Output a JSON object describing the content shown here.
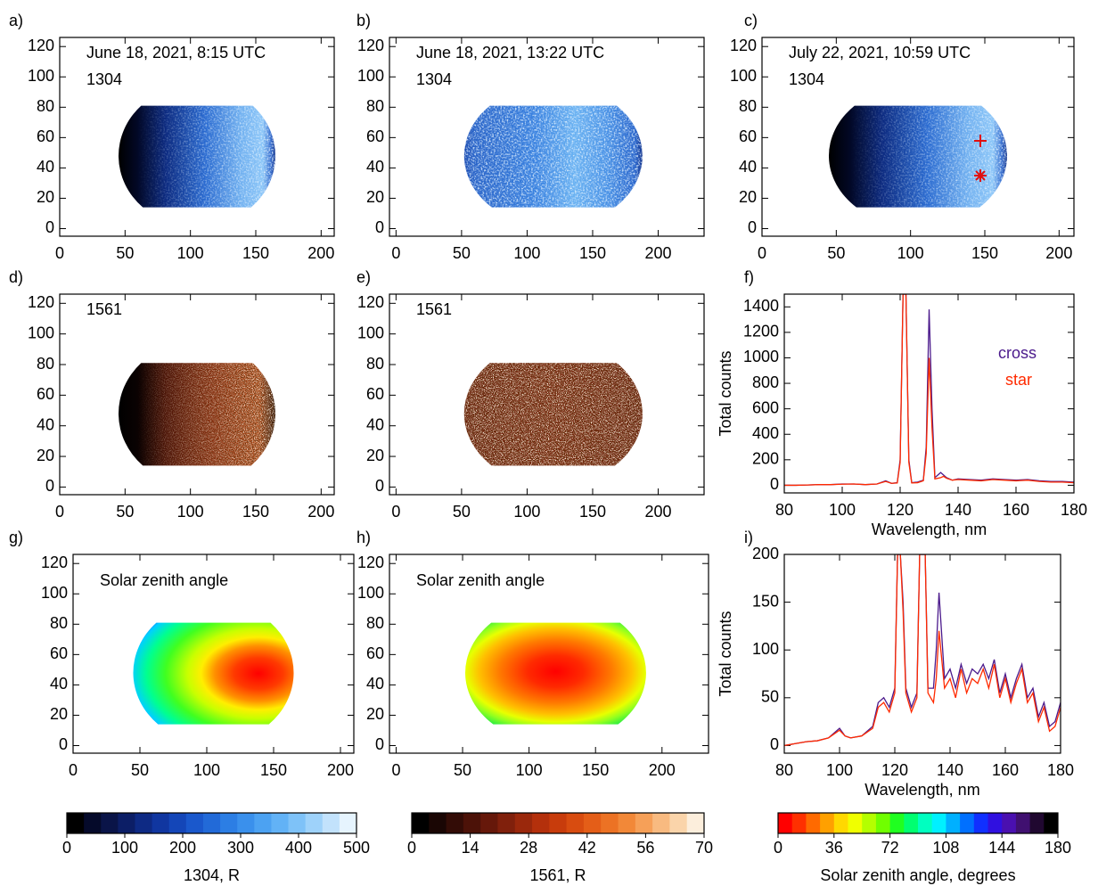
{
  "chart_data": [
    {
      "type": "image",
      "label": "a)",
      "annotations": [
        "June 18, 2021, 8:15 UTC",
        "1304"
      ],
      "colormap": "blue-dawn",
      "xlim": [
        0,
        210
      ],
      "xticks": [
        0,
        50,
        100,
        150,
        200
      ],
      "ylim": [
        -5,
        126
      ],
      "yticks": [
        0,
        20,
        40,
        60,
        80,
        100,
        120
      ]
    },
    {
      "type": "image",
      "label": "b)",
      "annotations": [
        "June 18, 2021, 13:22 UTC",
        "1304"
      ],
      "colormap": "blue-day",
      "xlim": [
        -5,
        235
      ],
      "xticks": [
        0,
        50,
        100,
        150,
        200
      ],
      "ylim": [
        -5,
        126
      ],
      "yticks": [
        0,
        20,
        40,
        60,
        80,
        100,
        120
      ]
    },
    {
      "type": "image",
      "label": "c)",
      "annotations": [
        "July 22, 2021, 10:59 UTC",
        "1304"
      ],
      "colormap": "blue-dawn",
      "xlim": [
        0,
        210
      ],
      "xticks": [
        0,
        50,
        100,
        150,
        200
      ],
      "ylim": [
        -5,
        126
      ],
      "yticks": [
        0,
        20,
        40,
        60,
        80,
        100,
        120
      ]
    },
    {
      "type": "image",
      "label": "d)",
      "annotations": [
        "1561"
      ],
      "colormap": "red-dawn",
      "xlim": [
        0,
        210
      ],
      "xticks": [
        0,
        50,
        100,
        150,
        200
      ],
      "ylim": [
        -5,
        126
      ],
      "yticks": [
        0,
        20,
        40,
        60,
        80,
        100,
        120
      ]
    },
    {
      "type": "image",
      "label": "e)",
      "annotations": [
        "1561"
      ],
      "colormap": "red-day",
      "xlim": [
        -5,
        235
      ],
      "xticks": [
        0,
        50,
        100,
        150,
        200
      ],
      "ylim": [
        -5,
        126
      ],
      "yticks": [
        0,
        20,
        40,
        60,
        80,
        100,
        120
      ]
    },
    {
      "type": "line",
      "label": "f)",
      "xlabel": "Wavelength, nm",
      "ylabel": "Total counts",
      "x": [
        80,
        84,
        88,
        92,
        96,
        100,
        104,
        108,
        112,
        115,
        117,
        119,
        120,
        121,
        122,
        123,
        124,
        126,
        128,
        129,
        130,
        131,
        132,
        134,
        135,
        136,
        138,
        140,
        144,
        148,
        152,
        156,
        160,
        164,
        168,
        172,
        176,
        180
      ],
      "series": [
        {
          "name": "cross",
          "color": "#4b1a8c",
          "values": [
            0,
            0,
            2,
            5,
            5,
            10,
            10,
            5,
            10,
            35,
            15,
            20,
            200,
            1500,
            1500,
            200,
            20,
            25,
            40,
            300,
            1380,
            600,
            60,
            100,
            80,
            60,
            40,
            50,
            45,
            40,
            50,
            45,
            40,
            45,
            35,
            30,
            30,
            25
          ]
        },
        {
          "name": "star",
          "color": "#ff2a00",
          "values": [
            0,
            0,
            2,
            5,
            5,
            8,
            10,
            5,
            10,
            30,
            15,
            18,
            180,
            1500,
            1500,
            180,
            18,
            20,
            35,
            250,
            1000,
            450,
            50,
            60,
            70,
            55,
            40,
            45,
            40,
            35,
            45,
            40,
            35,
            40,
            30,
            25,
            25,
            20
          ]
        }
      ],
      "xlim": [
        80,
        180
      ],
      "xticks": [
        80,
        100,
        120,
        140,
        160,
        180
      ],
      "ylim": [
        -60,
        1500
      ],
      "yticks": [
        0,
        200,
        400,
        600,
        800,
        1000,
        1200,
        1400
      ]
    },
    {
      "type": "image",
      "label": "g)",
      "annotations": [
        "Solar zenith angle"
      ],
      "colormap": "sza-dawn",
      "xlim": [
        0,
        210
      ],
      "xticks": [
        0,
        50,
        100,
        150,
        200
      ],
      "ylim": [
        -5,
        126
      ],
      "yticks": [
        0,
        20,
        40,
        60,
        80,
        100,
        120
      ]
    },
    {
      "type": "image",
      "label": "h)",
      "annotations": [
        "Solar zenith angle"
      ],
      "colormap": "sza-day",
      "xlim": [
        -5,
        235
      ],
      "xticks": [
        0,
        50,
        100,
        150,
        200
      ],
      "ylim": [
        -5,
        126
      ],
      "yticks": [
        0,
        20,
        40,
        60,
        80,
        100,
        120
      ]
    },
    {
      "type": "line",
      "label": "i)",
      "xlabel": "Wavelength, nm",
      "ylabel": "Total counts",
      "x": [
        80,
        84,
        88,
        92,
        96,
        100,
        102,
        104,
        108,
        112,
        114,
        116,
        118,
        120,
        121,
        122,
        123,
        124,
        126,
        128,
        129,
        130,
        131,
        132,
        134,
        135,
        136,
        138,
        140,
        142,
        144,
        146,
        148,
        150,
        152,
        154,
        156,
        158,
        160,
        162,
        164,
        166,
        168,
        170,
        172,
        174,
        176,
        178,
        180
      ],
      "series": [
        {
          "name": "cross",
          "color": "#4b1a8c",
          "values": [
            0,
            2,
            4,
            5,
            8,
            18,
            10,
            8,
            10,
            20,
            45,
            50,
            40,
            60,
            200,
            200,
            150,
            60,
            40,
            55,
            200,
            200,
            200,
            60,
            60,
            100,
            160,
            70,
            80,
            60,
            85,
            65,
            80,
            75,
            85,
            70,
            90,
            55,
            75,
            50,
            70,
            85,
            50,
            60,
            30,
            45,
            20,
            25,
            45
          ]
        },
        {
          "name": "star",
          "color": "#ff2a00",
          "values": [
            0,
            2,
            4,
            5,
            8,
            16,
            10,
            8,
            10,
            18,
            40,
            45,
            35,
            55,
            200,
            200,
            140,
            55,
            35,
            50,
            200,
            200,
            200,
            55,
            45,
            70,
            120,
            60,
            70,
            50,
            80,
            55,
            70,
            65,
            80,
            60,
            85,
            50,
            70,
            45,
            65,
            80,
            45,
            55,
            25,
            40,
            15,
            20,
            40
          ]
        }
      ],
      "xlim": [
        80,
        180
      ],
      "xticks": [
        80,
        100,
        120,
        140,
        160,
        180
      ],
      "ylim": [
        -8,
        200
      ],
      "yticks": [
        0,
        50,
        100,
        150,
        200
      ]
    },
    {
      "type": "colorbar",
      "xlabel": "1304, R",
      "xlim": [
        0,
        500
      ],
      "xticks": [
        0,
        100,
        200,
        300,
        400,
        500
      ],
      "colors": [
        "#000000",
        "#050a2a",
        "#0a1448",
        "#0c1e66",
        "#0e2a84",
        "#1036a0",
        "#1446b8",
        "#1a58cc",
        "#226ad8",
        "#2c7ee4",
        "#3a90ec",
        "#4ca2f2",
        "#62b2f6",
        "#7ec2f8",
        "#9ed2fa",
        "#c2e2fc",
        "#e6f4fe"
      ]
    },
    {
      "type": "colorbar",
      "xlabel": "1561, R",
      "xlim": [
        0,
        70
      ],
      "xticks": [
        0,
        14,
        28,
        42,
        56,
        70
      ],
      "colors": [
        "#000000",
        "#1a0604",
        "#330c06",
        "#4c1208",
        "#66180a",
        "#80200c",
        "#9a280c",
        "#b4300c",
        "#c83c0c",
        "#d84c10",
        "#e45e18",
        "#ec7224",
        "#f28838",
        "#f6a058",
        "#f8ba80",
        "#fad4aa",
        "#fceedc"
      ]
    },
    {
      "type": "colorbar",
      "xlabel": "Solar zenith angle, degrees",
      "xlim": [
        0,
        180
      ],
      "xticks": [
        0,
        36,
        72,
        108,
        144,
        180
      ],
      "colors": [
        "#ff0000",
        "#ff3000",
        "#ff6a00",
        "#ffa000",
        "#ffd800",
        "#f0ff00",
        "#b4ff00",
        "#70ff00",
        "#20ff20",
        "#00ff70",
        "#00ffc0",
        "#00f0ff",
        "#00b0ff",
        "#0070ff",
        "#1030ff",
        "#3010e0",
        "#4a10b0",
        "#401070",
        "#200830",
        "#000000"
      ]
    }
  ]
}
